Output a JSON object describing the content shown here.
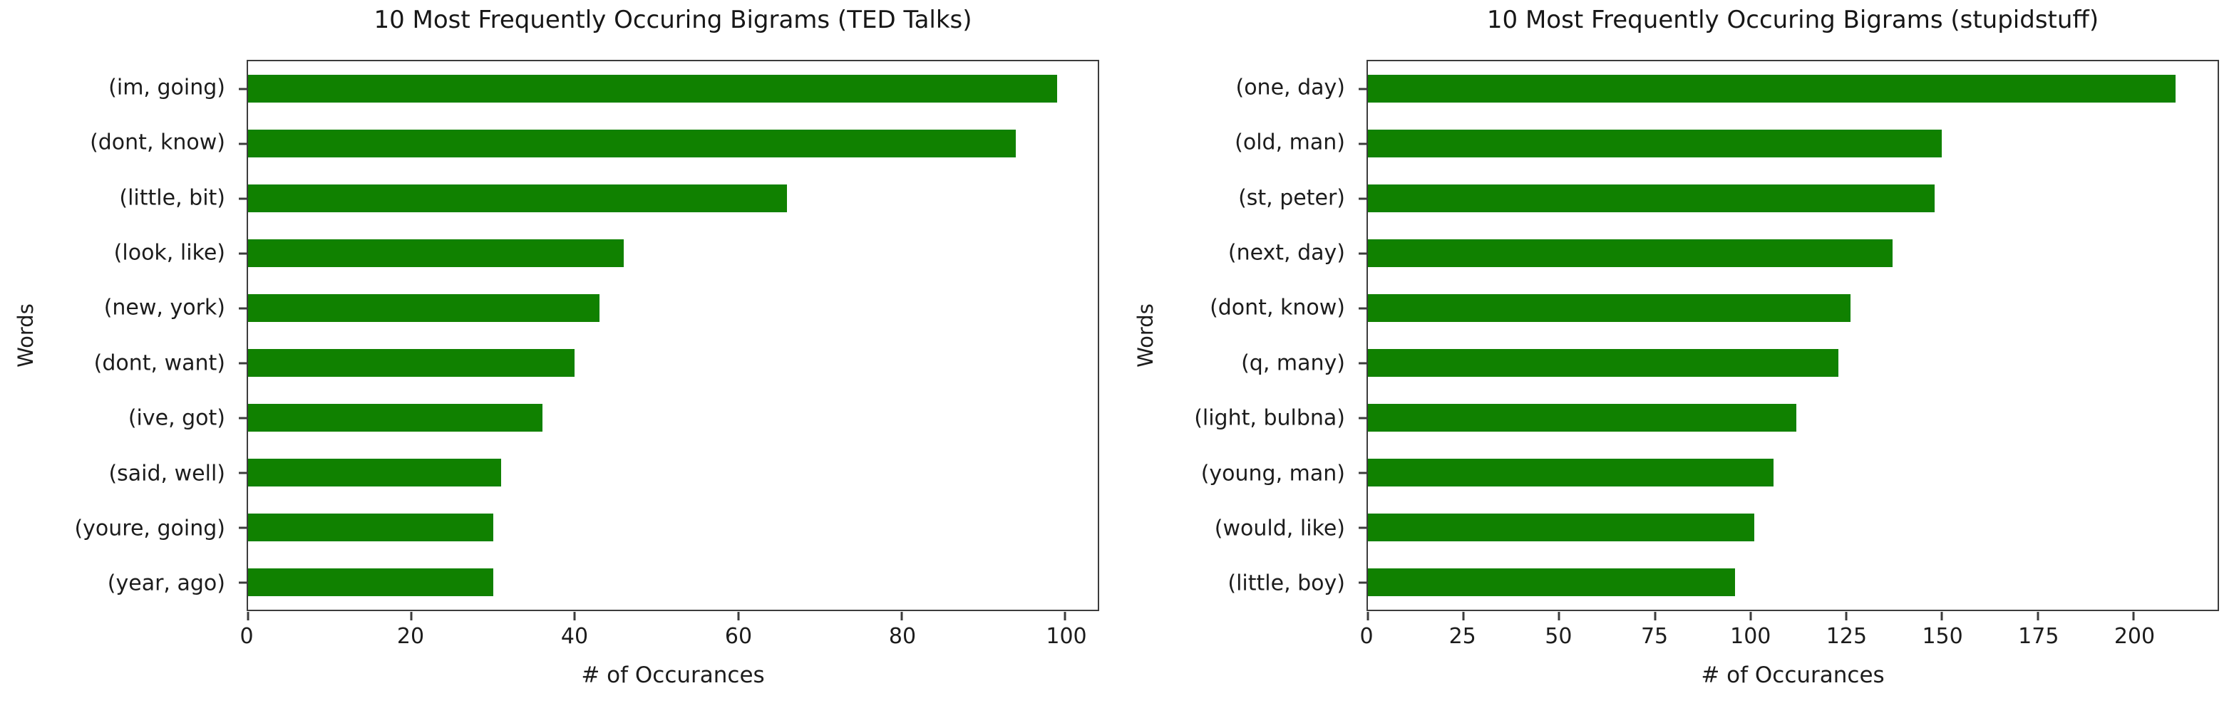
{
  "page": {
    "background": "#ffffff"
  },
  "colors": {
    "bar": "#108100",
    "spine": "#3c3c3c",
    "text": "#1c1c1c"
  },
  "chart_data": [
    {
      "type": "bar",
      "orientation": "horizontal",
      "title": "10 Most Frequently Occuring Bigrams (TED Talks)",
      "xlabel": "# of Occurances",
      "ylabel": "Words",
      "categories": [
        "(im, going)",
        "(dont, know)",
        "(little, bit)",
        "(look, like)",
        "(new, york)",
        "(dont, want)",
        "(ive, got)",
        "(said, well)",
        "(youre, going)",
        "(year, ago)"
      ],
      "values": [
        99,
        94,
        66,
        46,
        43,
        40,
        36,
        31,
        30,
        30
      ],
      "xticks": [
        0,
        20,
        40,
        60,
        80,
        100
      ],
      "xlim": [
        0,
        104
      ],
      "grid": false,
      "legend": "none",
      "bar_color": "#108100"
    },
    {
      "type": "bar",
      "orientation": "horizontal",
      "title": "10 Most Frequently Occuring Bigrams (stupidstuff)",
      "xlabel": "# of Occurances",
      "ylabel": "Words",
      "categories": [
        "(one, day)",
        "(old, man)",
        "(st, peter)",
        "(next, day)",
        "(dont, know)",
        "(q, many)",
        "(light, bulbna)",
        "(young, man)",
        "(would, like)",
        "(little, boy)"
      ],
      "values": [
        211,
        150,
        148,
        137,
        126,
        123,
        112,
        106,
        101,
        96
      ],
      "xticks": [
        0,
        25,
        50,
        75,
        100,
        125,
        150,
        175,
        200
      ],
      "xlim": [
        0,
        222
      ],
      "grid": false,
      "legend": "none",
      "bar_color": "#108100"
    }
  ]
}
